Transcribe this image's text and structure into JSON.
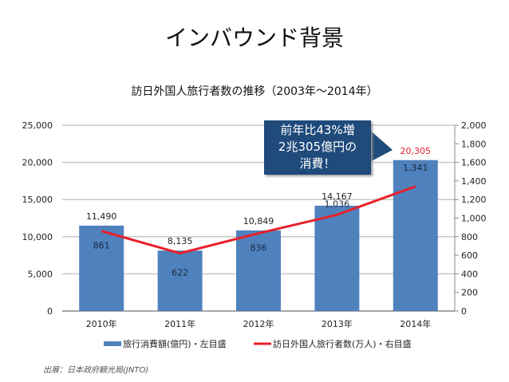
{
  "title": "インバウンド背景",
  "chart_data": {
    "type": "bar+line",
    "title": "訪日外国人旅行者数の推移（2003年〜2014年）",
    "categories": [
      "2010年",
      "2011年",
      "2012年",
      "2013年",
      "2014年"
    ],
    "series": [
      {
        "name": "旅行消費額(億円)・左目盛",
        "type": "bar",
        "axis": "left",
        "values": [
          11490,
          8135,
          10849,
          14167,
          20305
        ],
        "labels": [
          "11,490",
          "8,135",
          "10,849",
          "14,167",
          "20,305"
        ],
        "color": "#4f81bd"
      },
      {
        "name": "訪日外国人旅行者数(万人)・右目盛",
        "type": "line",
        "axis": "right",
        "values": [
          861,
          622,
          836,
          1036,
          1341
        ],
        "labels": [
          "861",
          "622",
          "836",
          "1,036",
          "1,341"
        ],
        "color": "#e8202a"
      }
    ],
    "left_axis": {
      "range": [
        0,
        25000
      ],
      "ticks": [
        "0",
        "5,000",
        "10,000",
        "15,000",
        "20,000",
        "25,000"
      ]
    },
    "right_axis": {
      "range": [
        0,
        2000
      ],
      "ticks": [
        "0",
        "200",
        "400",
        "600",
        "800",
        "1,000",
        "1,200",
        "1,400",
        "1,600",
        "1,800",
        "2,000"
      ]
    },
    "grid": true,
    "legend": "bottom",
    "highlight_label_color": "#e8202a"
  },
  "callout": {
    "lines": [
      "前年比43%増",
      "2兆305億円の",
      "消費！"
    ]
  },
  "source": "出展：日本政府観光局(JNTO)"
}
